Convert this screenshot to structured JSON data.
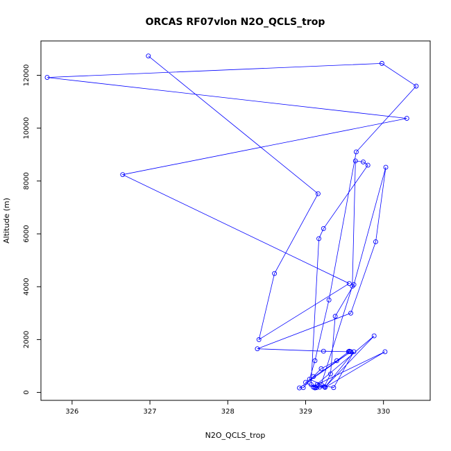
{
  "chart_data": {
    "type": "line",
    "title": "ORCAS RF07vlon N2O_QCLS_trop",
    "xlabel": "N2O_QCLS_trop",
    "ylabel": "Altitude (m)",
    "xlim": [
      325.6,
      330.6
    ],
    "ylim": [
      -300,
      13300
    ],
    "xticks": [
      326,
      327,
      328,
      329,
      330
    ],
    "yticks": [
      0,
      2000,
      4000,
      6000,
      8000,
      10000,
      12000
    ],
    "marker": "open-circle",
    "grid": false,
    "colors": {
      "series": "#0000ff",
      "axis": "#000000"
    },
    "series": [
      {
        "x": [
          326.98,
          329.16,
          328.6,
          328.4,
          329.56,
          326.65,
          330.3,
          325.68,
          329.98,
          330.42,
          329.65,
          329.3,
          329.12,
          329.05,
          329.2,
          329.6,
          329.64,
          329.74,
          329.8,
          329.23,
          329.17,
          329.07,
          329.12,
          329.24,
          329.32,
          329.38,
          329.62,
          330.03,
          329.9,
          329.58,
          328.38,
          329.23,
          329.55,
          329.57,
          329.56,
          329.4,
          329.2,
          329.1,
          328.97,
          328.92,
          329.58,
          329.0,
          329.1,
          329.88,
          329.25,
          329.62,
          329.36,
          329.15,
          330.02,
          329.25,
          329.18,
          329.14,
          329.12
        ],
        "y": [
          12730,
          7520,
          4500,
          2000,
          4120,
          8240,
          10370,
          11920,
          12450,
          11590,
          9100,
          3500,
          1200,
          500,
          300,
          4020,
          8760,
          8720,
          8600,
          6200,
          5820,
          300,
          200,
          220,
          700,
          2880,
          4080,
          8520,
          5700,
          3000,
          1650,
          1560,
          1540,
          1550,
          1560,
          1200,
          900,
          600,
          180,
          170,
          1540,
          380,
          200,
          2140,
          200,
          1540,
          180,
          300,
          1540,
          190,
          200,
          180,
          170
        ]
      }
    ]
  }
}
